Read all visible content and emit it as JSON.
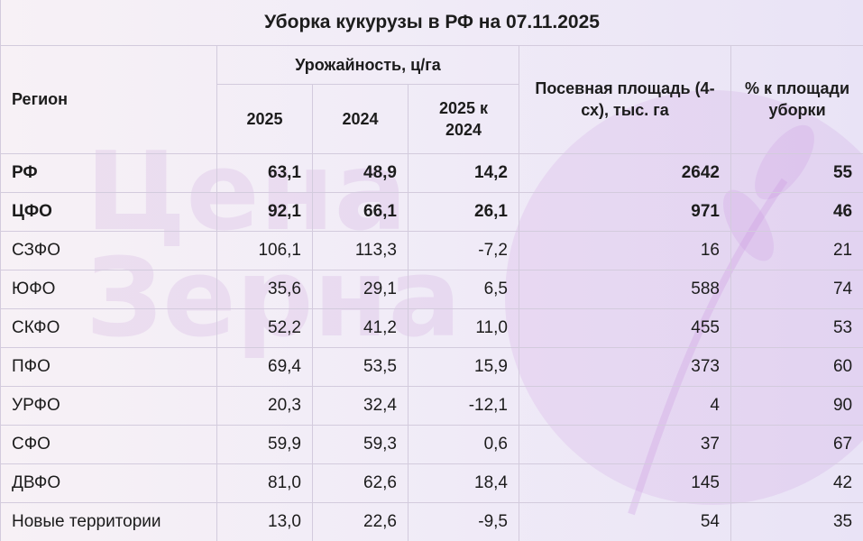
{
  "title": "Уборка кукурузы в РФ на 07.11.2025",
  "headers": {
    "region": "Регион",
    "yield": "Урожайность, ц/га",
    "y2025": "2025",
    "y2024": "2024",
    "diff": "2025 к 2024",
    "area": "Посевная площадь (4-сх), тыс. га",
    "pct": "% к площади уборки"
  },
  "rows": [
    {
      "region": "РФ",
      "y2025": "63,1",
      "y2024": "48,9",
      "diff": "14,2",
      "area": "2642",
      "pct": "55"
    },
    {
      "region": "ЦФО",
      "y2025": "92,1",
      "y2024": "66,1",
      "diff": "26,1",
      "area": "971",
      "pct": "46"
    },
    {
      "region": "СЗФО",
      "y2025": "106,1",
      "y2024": "113,3",
      "diff": "-7,2",
      "area": "16",
      "pct": "21"
    },
    {
      "region": "ЮФО",
      "y2025": "35,6",
      "y2024": "29,1",
      "diff": "6,5",
      "area": "588",
      "pct": "74"
    },
    {
      "region": "СКФО",
      "y2025": "52,2",
      "y2024": "41,2",
      "diff": "11,0",
      "area": "455",
      "pct": "53"
    },
    {
      "region": "ПФО",
      "y2025": "69,4",
      "y2024": "53,5",
      "diff": "15,9",
      "area": "373",
      "pct": "60"
    },
    {
      "region": "УРФО",
      "y2025": "20,3",
      "y2024": "32,4",
      "diff": "-12,1",
      "area": "4",
      "pct": "90"
    },
    {
      "region": "СФО",
      "y2025": "59,9",
      "y2024": "59,3",
      "diff": "0,6",
      "area": "37",
      "pct": "67"
    },
    {
      "region": "ДВФО",
      "y2025": "81,0",
      "y2024": "62,6",
      "diff": "18,4",
      "area": "145",
      "pct": "42"
    },
    {
      "region": "Новые территории",
      "y2025": "13,0",
      "y2024": "22,6",
      "diff": "-9,5",
      "area": "54",
      "pct": "35"
    }
  ],
  "watermark": {
    "line1": "Цена",
    "line2": "Зерна"
  }
}
